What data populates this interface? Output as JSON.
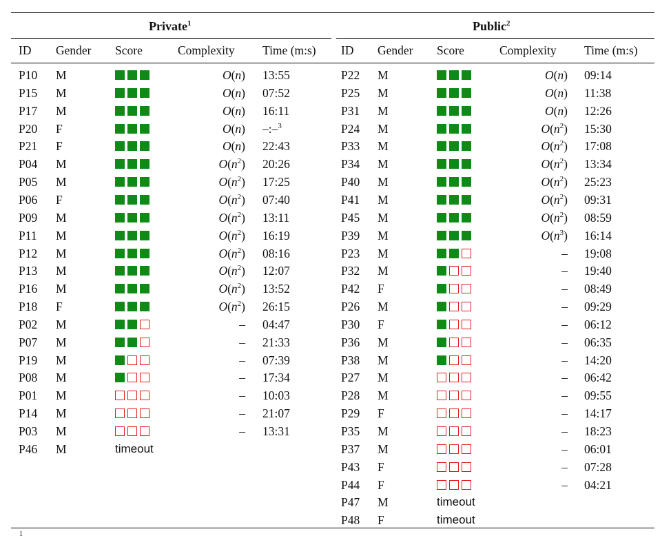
{
  "headers": {
    "private_title": "Private",
    "private_footnote": "1",
    "public_title": "Public",
    "public_footnote": "2",
    "columns": [
      "ID",
      "Gender",
      "Score",
      "Complexity",
      "Time (m:s)"
    ]
  },
  "colors": {
    "filled": "#0f8a17",
    "empty_border": "#e21b1b"
  },
  "private": [
    {
      "id": "P10",
      "gender": "M",
      "score": 3,
      "complexity": "n",
      "time": "13:55"
    },
    {
      "id": "P15",
      "gender": "M",
      "score": 3,
      "complexity": "n",
      "time": "07:52"
    },
    {
      "id": "P17",
      "gender": "M",
      "score": 3,
      "complexity": "n",
      "time": "16:11"
    },
    {
      "id": "P20",
      "gender": "F",
      "score": 3,
      "complexity": "n",
      "time": "–:–",
      "time_sup": "3"
    },
    {
      "id": "P21",
      "gender": "F",
      "score": 3,
      "complexity": "n",
      "time": "22:43"
    },
    {
      "id": "P04",
      "gender": "M",
      "score": 3,
      "complexity": "n2",
      "time": "20:26"
    },
    {
      "id": "P05",
      "gender": "M",
      "score": 3,
      "complexity": "n2",
      "time": "17:25"
    },
    {
      "id": "P06",
      "gender": "F",
      "score": 3,
      "complexity": "n2",
      "time": "07:40"
    },
    {
      "id": "P09",
      "gender": "M",
      "score": 3,
      "complexity": "n2",
      "time": "13:11"
    },
    {
      "id": "P11",
      "gender": "M",
      "score": 3,
      "complexity": "n2",
      "time": "16:19"
    },
    {
      "id": "P12",
      "gender": "M",
      "score": 3,
      "complexity": "n2",
      "time": "08:16"
    },
    {
      "id": "P13",
      "gender": "M",
      "score": 3,
      "complexity": "n2",
      "time": "12:07"
    },
    {
      "id": "P16",
      "gender": "M",
      "score": 3,
      "complexity": "n2",
      "time": "13:52"
    },
    {
      "id": "P18",
      "gender": "F",
      "score": 3,
      "complexity": "n2",
      "time": "26:15"
    },
    {
      "id": "P02",
      "gender": "M",
      "score": 2,
      "complexity": "–",
      "time": "04:47"
    },
    {
      "id": "P07",
      "gender": "M",
      "score": 2,
      "complexity": "–",
      "time": "21:33"
    },
    {
      "id": "P19",
      "gender": "M",
      "score": 1,
      "complexity": "–",
      "time": "07:39"
    },
    {
      "id": "P08",
      "gender": "M",
      "score": 1,
      "complexity": "–",
      "time": "17:34"
    },
    {
      "id": "P01",
      "gender": "M",
      "score": 0,
      "complexity": "–",
      "time": "10:03"
    },
    {
      "id": "P14",
      "gender": "M",
      "score": 0,
      "complexity": "–",
      "time": "21:07"
    },
    {
      "id": "P03",
      "gender": "M",
      "score": 0,
      "complexity": "–",
      "time": "13:31"
    },
    {
      "id": "P46",
      "gender": "M",
      "score": "timeout",
      "complexity": "",
      "time": ""
    }
  ],
  "public": [
    {
      "id": "P22",
      "gender": "M",
      "score": 3,
      "complexity": "n",
      "time": "09:14"
    },
    {
      "id": "P25",
      "gender": "M",
      "score": 3,
      "complexity": "n",
      "time": "11:38"
    },
    {
      "id": "P31",
      "gender": "M",
      "score": 3,
      "complexity": "n",
      "time": "12:26"
    },
    {
      "id": "P24",
      "gender": "M",
      "score": 3,
      "complexity": "n2",
      "time": "15:30"
    },
    {
      "id": "P33",
      "gender": "M",
      "score": 3,
      "complexity": "n2",
      "time": "17:08"
    },
    {
      "id": "P34",
      "gender": "M",
      "score": 3,
      "complexity": "n2",
      "time": "13:34"
    },
    {
      "id": "P40",
      "gender": "M",
      "score": 3,
      "complexity": "n2",
      "time": "25:23"
    },
    {
      "id": "P41",
      "gender": "M",
      "score": 3,
      "complexity": "n2",
      "time": "09:31"
    },
    {
      "id": "P45",
      "gender": "M",
      "score": 3,
      "complexity": "n2",
      "time": "08:59"
    },
    {
      "id": "P39",
      "gender": "M",
      "score": 3,
      "complexity": "n3",
      "time": "16:14"
    },
    {
      "id": "P23",
      "gender": "M",
      "score": 2,
      "complexity": "–",
      "time": "19:08"
    },
    {
      "id": "P32",
      "gender": "M",
      "score": 1,
      "complexity": "–",
      "time": "19:40"
    },
    {
      "id": "P42",
      "gender": "F",
      "score": 1,
      "complexity": "–",
      "time": "08:49"
    },
    {
      "id": "P26",
      "gender": "M",
      "score": 1,
      "complexity": "–",
      "time": "09:29"
    },
    {
      "id": "P30",
      "gender": "F",
      "score": 1,
      "complexity": "–",
      "time": "06:12"
    },
    {
      "id": "P36",
      "gender": "M",
      "score": 1,
      "complexity": "–",
      "time": "06:35"
    },
    {
      "id": "P38",
      "gender": "M",
      "score": 1,
      "complexity": "–",
      "time": "14:20"
    },
    {
      "id": "P27",
      "gender": "M",
      "score": 0,
      "complexity": "–",
      "time": "06:42"
    },
    {
      "id": "P28",
      "gender": "M",
      "score": 0,
      "complexity": "–",
      "time": "09:55"
    },
    {
      "id": "P29",
      "gender": "F",
      "score": 0,
      "complexity": "–",
      "time": "14:17"
    },
    {
      "id": "P35",
      "gender": "M",
      "score": 0,
      "complexity": "–",
      "time": "18:23"
    },
    {
      "id": "P37",
      "gender": "M",
      "score": 0,
      "complexity": "–",
      "time": "06:01"
    },
    {
      "id": "P43",
      "gender": "F",
      "score": 0,
      "complexity": "–",
      "time": "07:28"
    },
    {
      "id": "P44",
      "gender": "F",
      "score": 0,
      "complexity": "–",
      "time": "04:21"
    },
    {
      "id": "P47",
      "gender": "M",
      "score": "timeout",
      "complexity": "",
      "time": ""
    },
    {
      "id": "P48",
      "gender": "F",
      "score": "timeout",
      "complexity": "",
      "time": ""
    }
  ],
  "footnote_mark": "1"
}
